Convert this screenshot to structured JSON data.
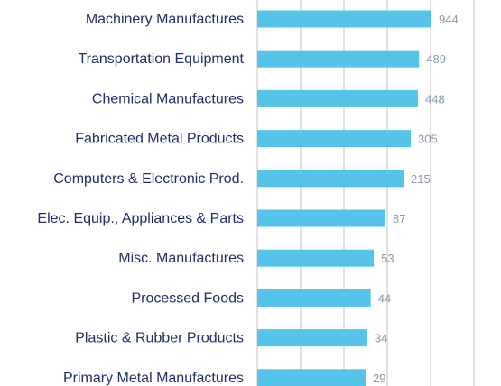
{
  "chart_data": {
    "type": "bar",
    "orientation": "horizontal",
    "categories": [
      "Machinery Manufactures",
      "Transportation Equipment",
      "Chemical Manufactures",
      "Fabricated Metal Products",
      "Computers & Electronic Prod.",
      "Elec. Equip., Appliances & Parts",
      "Misc. Manufactures",
      "Processed Foods",
      "Plastic & Rubber Products",
      "Primary Metal Manufactures"
    ],
    "values": [
      944,
      489,
      448,
      305,
      215,
      87,
      53,
      44,
      34,
      29
    ],
    "value_labels": [
      "944",
      "489",
      "448",
      "305",
      "215",
      "87",
      "53",
      "44",
      "34",
      "29"
    ],
    "grid": true,
    "legend": "none",
    "colors": {
      "bar": "#56c4e8",
      "category_text": "#1f2f6b",
      "value_text": "#8a9aa8",
      "gridline": "#c6c6c6"
    }
  }
}
